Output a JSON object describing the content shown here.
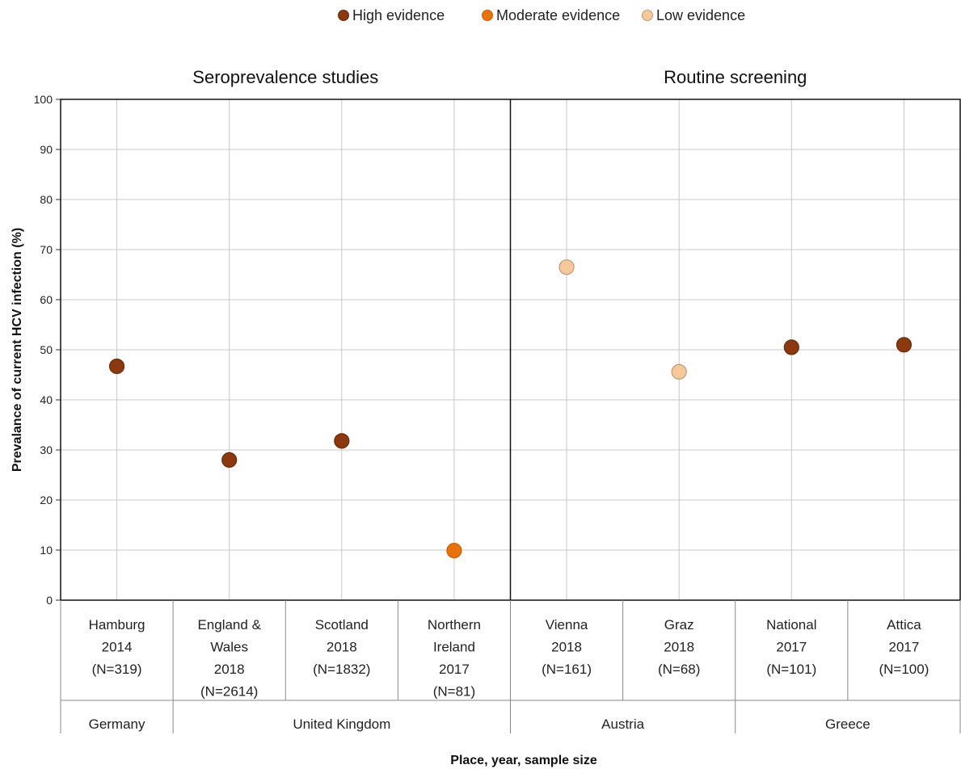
{
  "chart_data": {
    "type": "scatter",
    "xlabel": "Place, year, sample size",
    "ylabel": "Prevalance of current HCV infection (%)",
    "ylim": [
      0,
      100
    ],
    "yticks": [
      0,
      10,
      20,
      30,
      40,
      50,
      60,
      70,
      80,
      90,
      100
    ],
    "grid": true,
    "legend_position": "top-center",
    "legend": [
      {
        "key": "high",
        "label": "High evidence",
        "color": "#8B3A0F"
      },
      {
        "key": "moderate",
        "label": "Moderate evidence",
        "color": "#E8730C"
      },
      {
        "key": "low",
        "label": "Low evidence",
        "color": "#F6C89A"
      }
    ],
    "panels": [
      {
        "title": "Seroprevalence studies",
        "span": [
          0,
          4
        ]
      },
      {
        "title": "Routine screening",
        "span": [
          4,
          8
        ]
      }
    ],
    "categories": [
      {
        "lines": [
          "Hamburg",
          "2014",
          "(N=319)"
        ],
        "value": 46.7,
        "evidence": "high"
      },
      {
        "lines": [
          "England &",
          "Wales",
          "2018",
          "(N=2614)"
        ],
        "value": 28.0,
        "evidence": "high"
      },
      {
        "lines": [
          "Scotland",
          "2018",
          "(N=1832)"
        ],
        "value": 31.8,
        "evidence": "high"
      },
      {
        "lines": [
          "Northern",
          "Ireland",
          "2017",
          "(N=81)"
        ],
        "value": 9.9,
        "evidence": "moderate"
      },
      {
        "lines": [
          "Vienna",
          "2018",
          "(N=161)"
        ],
        "value": 66.5,
        "evidence": "low"
      },
      {
        "lines": [
          "Graz",
          "2018",
          "(N=68)"
        ],
        "value": 45.6,
        "evidence": "low"
      },
      {
        "lines": [
          "National",
          "2017",
          "(N=101)"
        ],
        "value": 50.5,
        "evidence": "high"
      },
      {
        "lines": [
          "Attica",
          "2017",
          "(N=100)"
        ],
        "value": 51.0,
        "evidence": "high"
      }
    ],
    "groups": [
      {
        "label": "Germany",
        "span": [
          0,
          1
        ]
      },
      {
        "label": "United Kingdom",
        "span": [
          1,
          4
        ]
      },
      {
        "label": "Austria",
        "span": [
          4,
          6
        ]
      },
      {
        "label": "Greece",
        "span": [
          6,
          8
        ]
      }
    ]
  }
}
